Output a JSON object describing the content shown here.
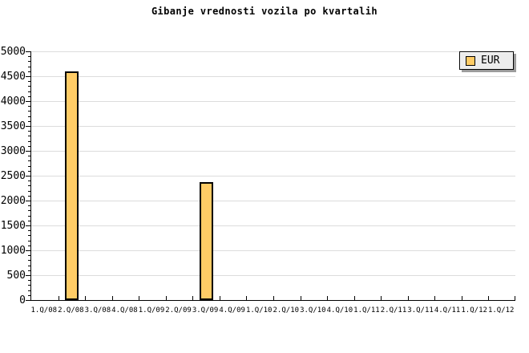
{
  "title": "Gibanje vrednosti vozila po kvartalih",
  "chart_data": {
    "type": "bar",
    "title": "Gibanje vrednosti vozila po kvartalih",
    "xlabel": "",
    "ylabel": "",
    "categories": [
      "1.Q/08",
      "2.Q/08",
      "3.Q/08",
      "4.Q/08",
      "1.Q/09",
      "2.Q/09",
      "3.Q/09",
      "4.Q/09",
      "1.Q/10",
      "2.Q/10",
      "3.Q/10",
      "4.Q/10",
      "1.Q/11",
      "2.Q/11",
      "3.Q/11",
      "4.Q/11",
      "1.Q/12",
      "1.Q/12"
    ],
    "series": [
      {
        "name": "EUR",
        "color": "#FFCC66",
        "border_color": "#000000",
        "values": [
          0,
          4600,
          0,
          0,
          0,
          0,
          2370,
          0,
          0,
          0,
          0,
          0,
          0,
          0,
          0,
          0,
          0,
          0
        ]
      }
    ],
    "ylim": [
      0,
      5000
    ],
    "ytick_major": 500,
    "ytick_minor": 100,
    "grid": "horizontal-major",
    "gridline_color": "#DCDCDC",
    "axis_color": "#000000",
    "background_color": "#FFFFFF",
    "legend": {
      "position": "top-right",
      "entries": [
        {
          "label": "EUR",
          "swatch_color": "#FFCC66"
        }
      ]
    }
  }
}
